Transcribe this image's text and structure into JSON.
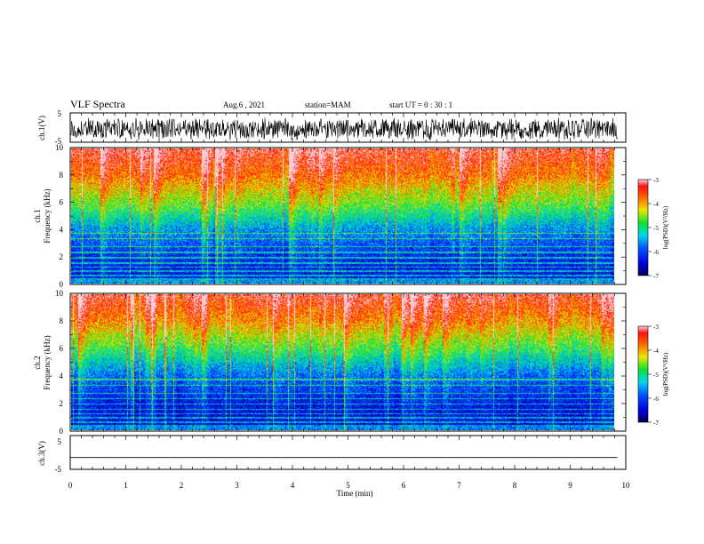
{
  "header": {
    "title": "VLF Spectra",
    "date": "Aug.6 , 2021",
    "station": "station=MAM",
    "start": "start UT = 0 : 30 : 1"
  },
  "chart_data": [
    {
      "type": "line",
      "name": "ch1-waveform",
      "ylabel": "ch.1(V)",
      "ylim": [
        -5,
        5
      ],
      "yticks": [
        "5",
        "-5"
      ],
      "x_range_min": [
        0,
        9.85
      ],
      "description_of_values": "dense noise waveform filling roughly -4 to +4 V"
    },
    {
      "type": "heatmap",
      "name": "ch1-spectrogram",
      "ylabel_line1": "ch.1",
      "ylabel_line2": "Frequency (kHz)",
      "ylim": [
        0,
        10
      ],
      "yticks": [
        "0",
        "2",
        "4",
        "6",
        "8",
        "10"
      ],
      "xlim": [
        0,
        10
      ],
      "data_x_max": 9.85,
      "colorbar": {
        "label": "log(PSD)(V²/Hz)",
        "range": [
          -7,
          -3
        ],
        "ticks": [
          "-3",
          "-4",
          "-5",
          "-6",
          "-7"
        ]
      },
      "level_profile_by_kHz": [
        [
          0,
          -6.4
        ],
        [
          2,
          -6.2
        ],
        [
          4,
          -5.6
        ],
        [
          6,
          -4.6
        ],
        [
          8,
          -3.8
        ],
        [
          10,
          -3.3
        ]
      ]
    },
    {
      "type": "heatmap",
      "name": "ch2-spectrogram",
      "ylabel_line1": "ch.2",
      "ylabel_line2": "Frequency (kHz)",
      "ylim": [
        0,
        10
      ],
      "yticks": [
        "0",
        "2",
        "4",
        "6",
        "8",
        "10"
      ],
      "xlim": [
        0,
        10
      ],
      "data_x_max": 9.85,
      "colorbar": {
        "label": "log(PSD)(V²/Hz)",
        "range": [
          -7,
          -3
        ],
        "ticks": [
          "-3",
          "-4",
          "-5",
          "-6",
          "-7"
        ]
      },
      "level_profile_by_kHz": [
        [
          0,
          -6.5
        ],
        [
          2,
          -6.3
        ],
        [
          4,
          -5.8
        ],
        [
          6,
          -4.8
        ],
        [
          8,
          -3.9
        ],
        [
          10,
          -3.3
        ]
      ]
    },
    {
      "type": "line",
      "name": "ch3-waveform",
      "ylabel": "ch.3(V)",
      "ylim": [
        -5,
        5
      ],
      "yticks": [
        "5",
        "-5"
      ],
      "values_constant": -1.5,
      "xlabel": "Time (min)",
      "xlim": [
        0,
        10
      ],
      "xticks": [
        "0",
        "1",
        "2",
        "3",
        "4",
        "5",
        "6",
        "7",
        "8",
        "9",
        "10"
      ]
    }
  ]
}
